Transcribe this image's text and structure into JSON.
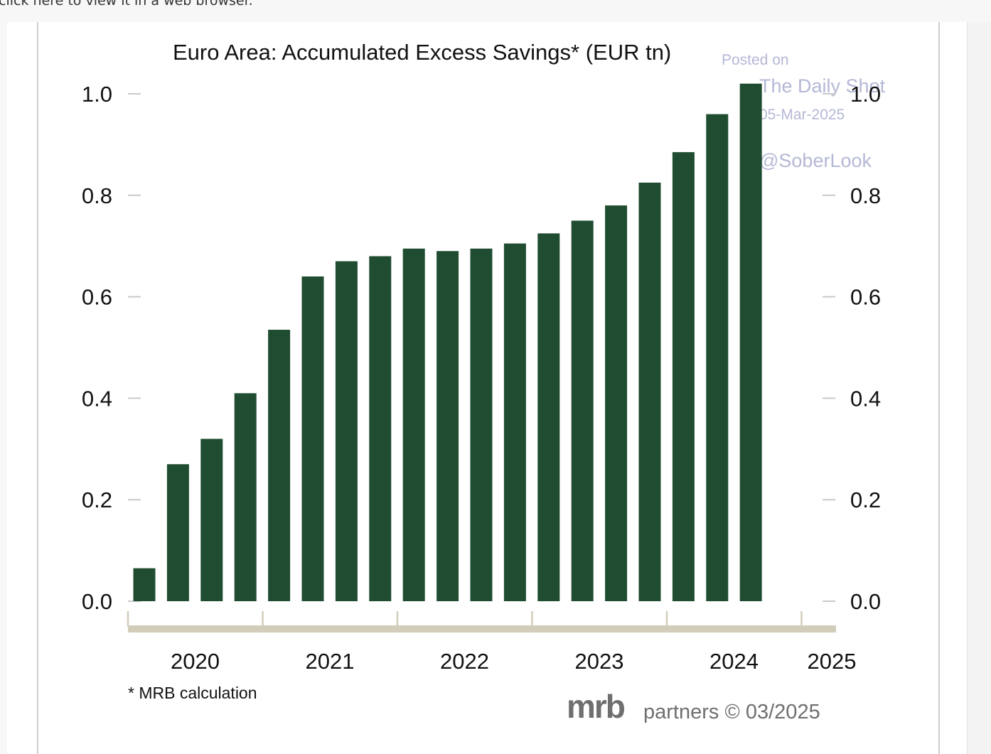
{
  "page": {
    "top_text": "click here to view it in a web browser."
  },
  "watermark": {
    "line1": "Posted on",
    "line2": "The Daily Shot",
    "line3": "05-Mar-2025",
    "line4": "@SoberLook"
  },
  "chart_data": {
    "type": "bar",
    "title": "Euro Area: Accumulated Excess Savings* (EUR tn)",
    "xlabel": "",
    "ylabel": "",
    "ylim": [
      0,
      1.0
    ],
    "y_ticks": [
      "0.0",
      "0.2",
      "0.4",
      "0.6",
      "0.8",
      "1.0"
    ],
    "x_ticks": [
      "2020",
      "2021",
      "2022",
      "2023",
      "2024",
      "2025"
    ],
    "values": [
      0.065,
      0.27,
      0.32,
      0.41,
      0.535,
      0.64,
      0.67,
      0.68,
      0.695,
      0.69,
      0.695,
      0.705,
      0.725,
      0.75,
      0.78,
      0.825,
      0.885,
      0.96,
      1.02
    ],
    "bar_color": "#204d32",
    "axis_color": "#d2ccba",
    "grid": false,
    "footnote": "* MRB calculation",
    "source_brand": "mrb",
    "source_text": "partners © 03/2025"
  }
}
